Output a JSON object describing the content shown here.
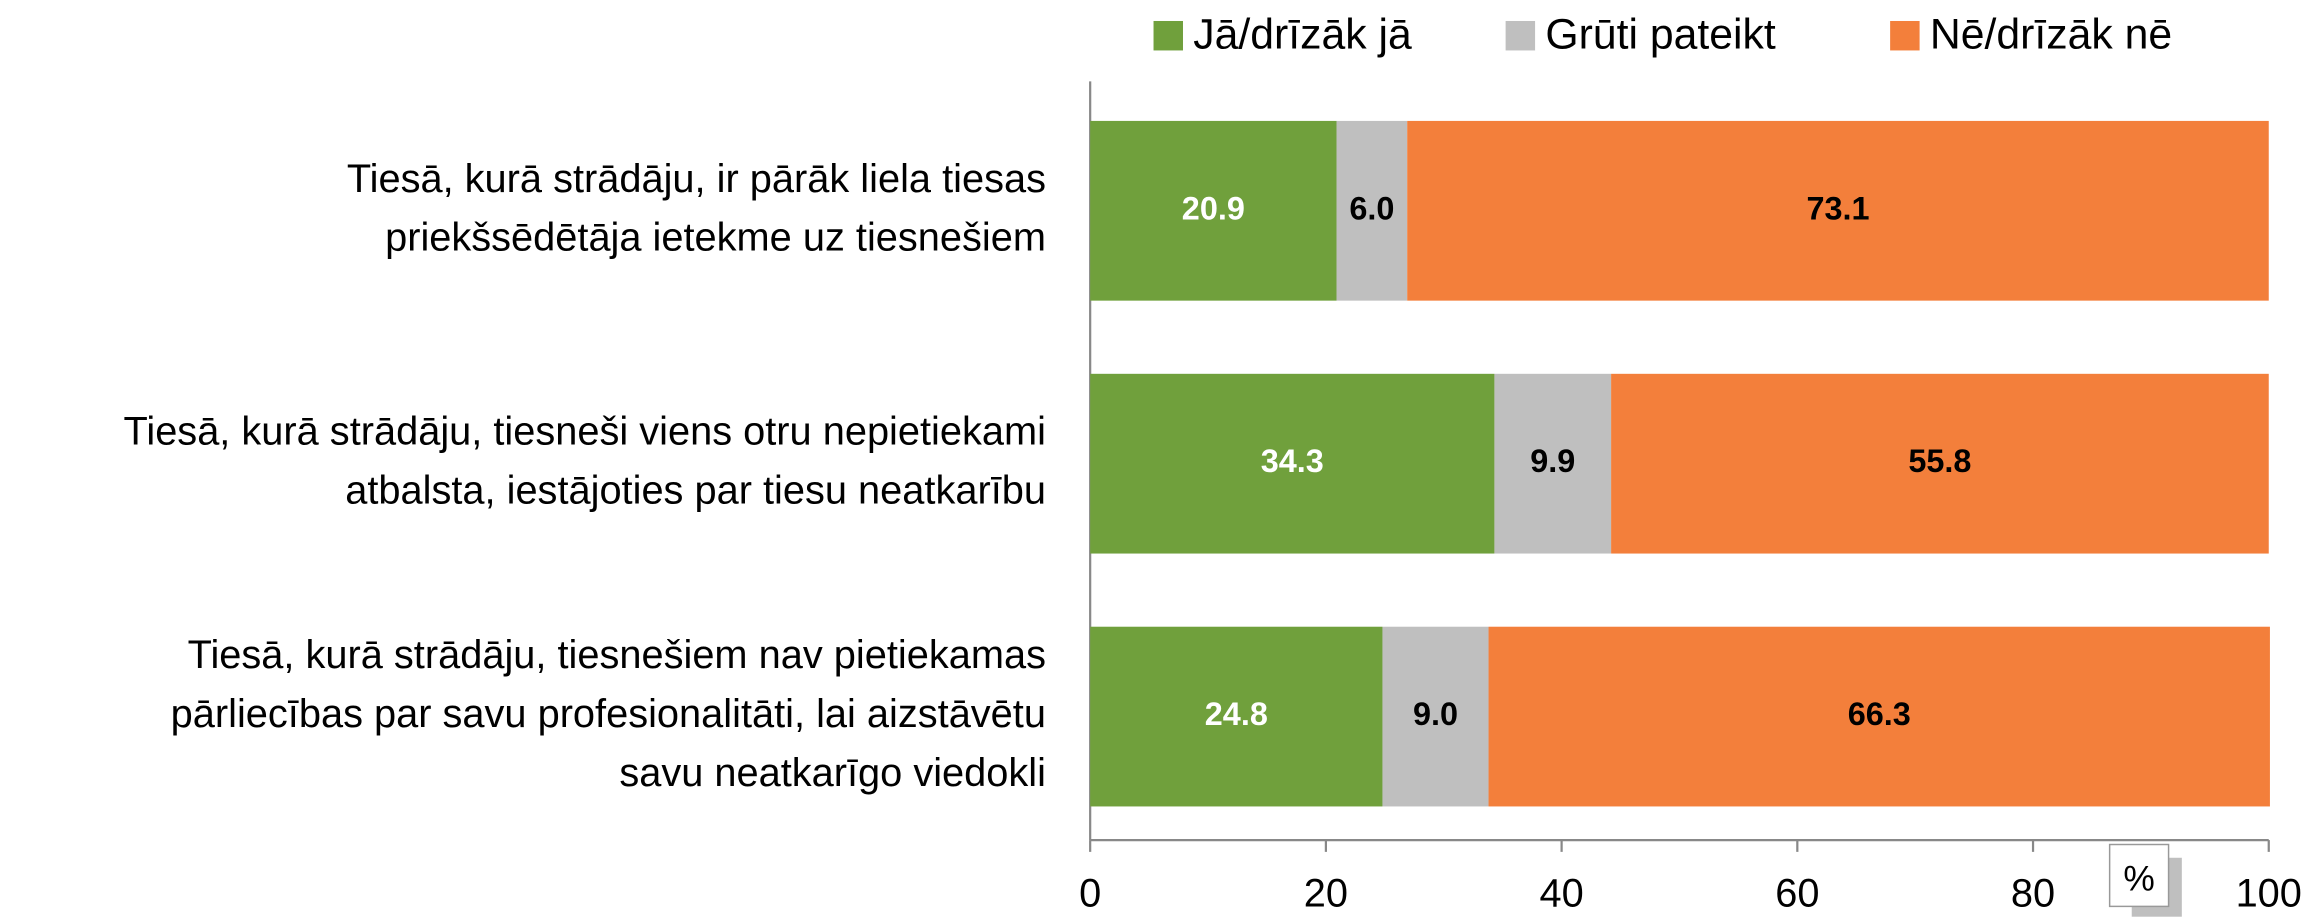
{
  "chart_data": {
    "type": "stacked-bar-horizontal",
    "categories": [
      [
        "Tiesā, kurā strādāju, ir pārāk liela tiesas",
        "priekšsēdētāja ietekme uz tiesnešiem"
      ],
      [
        "Tiesā, kurā strādāju, tiesneši viens otru nepietiekami",
        "atbalsta, iestājoties par tiesu neatkarību"
      ],
      [
        "Tiesā, kurā strādāju, tiesnešiem nav pietiekamas",
        "pārliecības par savu profesionalitāti, lai aizstāvētu",
        "savu neatkarīgo viedokli"
      ]
    ],
    "series": [
      {
        "name": "Jā/drīzāk jā",
        "color": "#70a03c",
        "label_color": "#ffffff",
        "values": [
          20.9,
          34.3,
          24.8
        ],
        "value_labels": [
          "20.9",
          "34.3",
          "24.8"
        ]
      },
      {
        "name": "Grūti pateikt",
        "color": "#bfbfbf",
        "label_color": "#000000",
        "values": [
          6.0,
          9.9,
          9.0
        ],
        "value_labels": [
          "6.0",
          "9.9",
          "9.0"
        ]
      },
      {
        "name": "Nē/drīzāk nē",
        "color": "#f37f3b",
        "label_color": "#000000",
        "values": [
          73.1,
          55.8,
          66.3
        ],
        "value_labels": [
          "73.1",
          "55.8",
          "66.3"
        ]
      }
    ],
    "xlabel": "%",
    "xlim": [
      0,
      100
    ],
    "xticks": [
      0,
      20,
      40,
      60,
      80,
      100
    ],
    "legend": "top"
  }
}
